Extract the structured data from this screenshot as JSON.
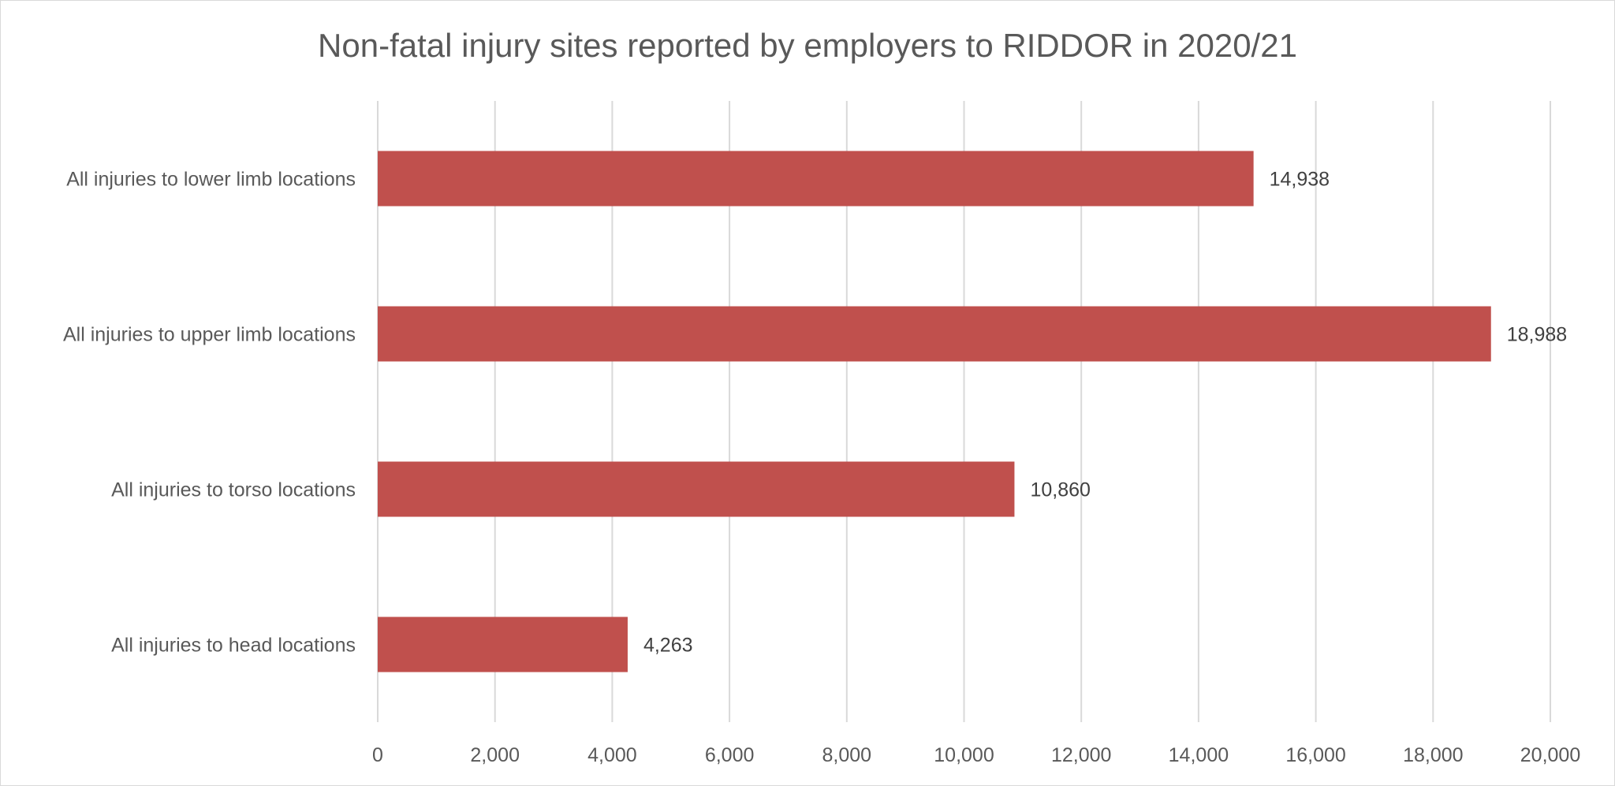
{
  "chart_data": {
    "type": "bar",
    "orientation": "horizontal",
    "title": "Non-fatal injury sites reported by employers to RIDDOR in 2020/21",
    "xlabel": "",
    "ylabel": "",
    "categories": [
      "All injuries to lower limb locations",
      "All injuries to upper limb locations",
      "All injuries to torso locations",
      "All injuries to head locations"
    ],
    "values": [
      14938,
      18988,
      10860,
      4263
    ],
    "value_labels": [
      "14,938",
      "18,988",
      "10,860",
      "4,263"
    ],
    "xlim": [
      0,
      20000
    ],
    "x_ticks": [
      0,
      2000,
      4000,
      6000,
      8000,
      10000,
      12000,
      14000,
      16000,
      18000,
      20000
    ],
    "x_tick_labels": [
      "0",
      "2,000",
      "4,000",
      "6,000",
      "8,000",
      "10,000",
      "12,000",
      "14,000",
      "16,000",
      "18,000",
      "20,000"
    ],
    "grid": "vertical",
    "legend": "none",
    "bar_color": "#C0504D"
  }
}
